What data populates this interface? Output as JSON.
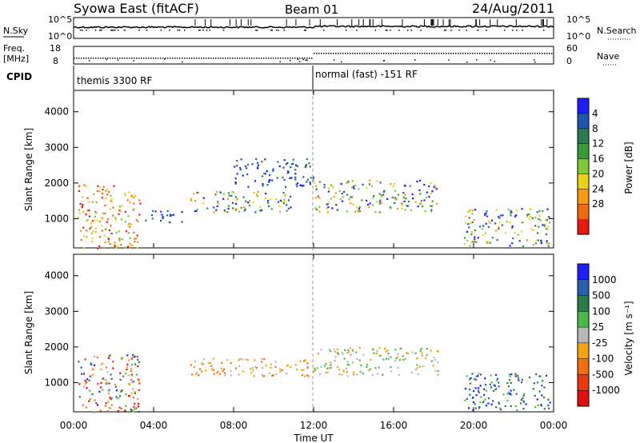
{
  "header": {
    "title": "Syowa East (fitACF)",
    "beam": "Beam 01",
    "date": "24/Aug/2011"
  },
  "status_panels": {
    "nsky_label": "N.Sky",
    "nsearch_label": "N.Search",
    "nsky_ticks": [
      "10^5",
      "10^0"
    ],
    "nsearch_ticks": [
      "10^5",
      "10^0"
    ],
    "freq_label_1": "Freq.",
    "freq_label_2": "[MHz]",
    "freq_ticks": [
      "18",
      "8"
    ],
    "nave_label": "Nave",
    "nave_ticks": [
      "60",
      "0"
    ],
    "cpid_label": "CPID",
    "cpid_segments": [
      {
        "start_hour": 0,
        "label": "themis 3300 RF"
      },
      {
        "start_hour": 12,
        "label": "normal (fast) -151 RF"
      }
    ]
  },
  "axes": {
    "xlabel": "Time UT",
    "x_ticks": [
      "00:00",
      "04:00",
      "08:00",
      "12:00",
      "16:00",
      "20:00",
      "00:00"
    ],
    "ylabel": "Slant Range [km]",
    "y_ticks": [
      "1000",
      "2000",
      "3000",
      "4000"
    ]
  },
  "power_colorbar": {
    "label": "Power [dB]",
    "ticks": [
      "4",
      "8",
      "12",
      "16",
      "20",
      "24",
      "28"
    ],
    "colors": [
      "#1e1eff",
      "#2255b0",
      "#2e7a55",
      "#3a9a3a",
      "#7ec83a",
      "#e8d21a",
      "#f59a12",
      "#f06a10",
      "#e81a10"
    ]
  },
  "velocity_colorbar": {
    "label": "Velocity [m s⁻¹]",
    "ticks": [
      "1000",
      "500",
      "100",
      "25",
      "-25",
      "-100",
      "-500",
      "-1000"
    ],
    "colors": [
      "#1e1eff",
      "#2a5fb0",
      "#2e7a4a",
      "#4cb84c",
      "#b8b8b8",
      "#f5a41a",
      "#f07010",
      "#e83a10",
      "#e01010"
    ]
  },
  "chart_data": {
    "type": "heatmap",
    "x_range_hours": [
      0,
      24
    ],
    "y_range_km": [
      180,
      4600
    ],
    "panels": [
      {
        "name": "power",
        "regions": [
          {
            "t": [
              0.2,
              2.0
            ],
            "r": [
              180,
              2000
            ],
            "level": "high"
          },
          {
            "t": [
              2.0,
              3.3
            ],
            "r": [
              180,
              1800
            ],
            "level": "high"
          },
          {
            "t": [
              3.5,
              5.5
            ],
            "r": [
              900,
              1250
            ],
            "level": "low"
          },
          {
            "t": [
              5.8,
              11.0
            ],
            "r": [
              1200,
              1800
            ],
            "level": "mid"
          },
          {
            "t": [
              8.0,
              12.0
            ],
            "r": [
              1900,
              2700
            ],
            "level": "low"
          },
          {
            "t": [
              12.0,
              18.2
            ],
            "r": [
              1200,
              2100
            ],
            "level": "mid"
          },
          {
            "t": [
              19.5,
              23.8
            ],
            "r": [
              250,
              1300
            ],
            "level": "mid"
          }
        ]
      },
      {
        "name": "velocity",
        "regions": [
          {
            "t": [
              0.2,
              3.3
            ],
            "r": [
              180,
              1800
            ],
            "level": "mixed"
          },
          {
            "t": [
              5.8,
              12.0
            ],
            "r": [
              1200,
              1700
            ],
            "level": "negative"
          },
          {
            "t": [
              12.0,
              18.2
            ],
            "r": [
              1200,
              2000
            ],
            "level": "low"
          },
          {
            "t": [
              19.5,
              23.8
            ],
            "r": [
              250,
              1300
            ],
            "level": "positive"
          }
        ]
      }
    ]
  }
}
